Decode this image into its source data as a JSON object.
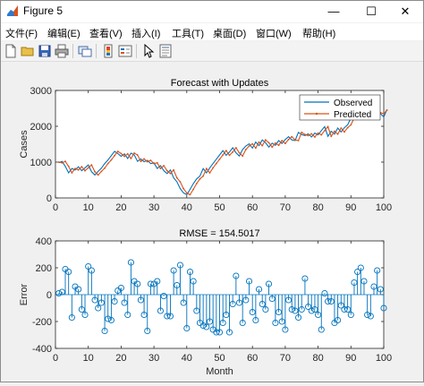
{
  "window": {
    "title": "Figure 5",
    "controls": {
      "minimize": "—",
      "maximize": "☐",
      "close": "✕"
    }
  },
  "menu": [
    {
      "label": "文件(F)"
    },
    {
      "label": "编辑(E)"
    },
    {
      "label": "查看(V)"
    },
    {
      "label": "插入(I)"
    },
    {
      "label": "工具(T)"
    },
    {
      "label": "桌面(D)"
    },
    {
      "label": "窗口(W)"
    },
    {
      "label": "帮助(H)"
    }
  ],
  "toolbar_icons": [
    "new-file-icon",
    "open-folder-icon",
    "save-icon",
    "print-icon",
    "link-plot-icon",
    "insert-colorbar-icon",
    "insert-legend-icon",
    "edit-plot-icon",
    "property-inspector-icon"
  ],
  "chart_data": [
    {
      "type": "line",
      "title": "Forecast with Updates",
      "xlabel": "",
      "ylabel": "Cases",
      "xlim": [
        0,
        100
      ],
      "ylim": [
        0,
        3000
      ],
      "xticks": [
        "0",
        "10",
        "20",
        "30",
        "40",
        "50",
        "60",
        "70",
        "80",
        "90",
        "100"
      ],
      "yticks": [
        "0",
        "1000",
        "2000",
        "3000"
      ],
      "legend": {
        "position": "top-right"
      },
      "series": [
        {
          "name": "Observed",
          "color": "#0072bd",
          "values": [
            980,
            1020,
            880,
            700,
            820,
            780,
            870,
            760,
            840,
            920,
            730,
            640,
            740,
            830,
            960,
            1060,
            1180,
            1300,
            1240,
            1160,
            1230,
            1100,
            1250,
            1200,
            1020,
            1090,
            1010,
            1050,
            960,
            980,
            820,
            900,
            760,
            680,
            780,
            560,
            450,
            260,
            140,
            90,
            240,
            400,
            530,
            610,
            820,
            700,
            840,
            960,
            1080,
            1200,
            1320,
            1190,
            1280,
            1400,
            1260,
            1170,
            1350,
            1450,
            1510,
            1390,
            1560,
            1460,
            1620,
            1540,
            1420,
            1530,
            1470,
            1600,
            1520,
            1630,
            1710,
            1620,
            1600,
            1830,
            1770,
            1740,
            1790,
            1700,
            1810,
            1760,
            1880,
            1990,
            1720,
            1860,
            1780,
            1950,
            1840,
            1960,
            2040,
            2230,
            2390,
            2400,
            2470,
            2300,
            2430,
            2390,
            2420,
            2380,
            2350,
            2260,
            2470
          ]
        },
        {
          "name": "Predicted",
          "color": "#d95319",
          "values": [
            1000,
            980,
            1020,
            880,
            700,
            820,
            780,
            870,
            760,
            840,
            920,
            730,
            640,
            740,
            830,
            960,
            1060,
            1180,
            1300,
            1240,
            1160,
            1230,
            1100,
            1250,
            1200,
            1020,
            1090,
            1010,
            1050,
            960,
            980,
            820,
            900,
            760,
            680,
            780,
            560,
            450,
            260,
            140,
            90,
            240,
            400,
            530,
            610,
            820,
            700,
            840,
            960,
            1080,
            1200,
            1320,
            1190,
            1280,
            1400,
            1260,
            1170,
            1350,
            1450,
            1510,
            1390,
            1560,
            1460,
            1620,
            1540,
            1420,
            1530,
            1470,
            1600,
            1520,
            1630,
            1710,
            1620,
            1600,
            1830,
            1770,
            1740,
            1790,
            1700,
            1810,
            1760,
            1880,
            1990,
            1720,
            1860,
            1780,
            1950,
            1840,
            1960,
            2040,
            2230,
            2390,
            2400,
            2470,
            2300,
            2430,
            2390,
            2420,
            2380,
            2350,
            2450
          ]
        }
      ]
    },
    {
      "type": "stem",
      "title": "RMSE = 154.5017",
      "xlabel": "Month",
      "ylabel": "Error",
      "xlim": [
        0,
        100
      ],
      "ylim": [
        -400,
        400
      ],
      "xticks": [
        "0",
        "10",
        "20",
        "30",
        "40",
        "50",
        "60",
        "70",
        "80",
        "90",
        "100"
      ],
      "yticks": [
        "-400",
        "-200",
        "0",
        "200",
        "400"
      ],
      "series": [
        {
          "color": "#0072bd",
          "x": [
            1,
            2,
            3,
            4,
            5,
            6,
            7,
            8,
            9,
            10,
            11,
            12,
            13,
            14,
            15,
            16,
            17,
            18,
            19,
            20,
            21,
            22,
            23,
            24,
            25,
            26,
            27,
            28,
            29,
            30,
            31,
            32,
            33,
            34,
            35,
            36,
            37,
            38,
            39,
            40,
            41,
            42,
            43,
            44,
            45,
            46,
            47,
            48,
            49,
            50,
            51,
            52,
            53,
            54,
            55,
            56,
            57,
            58,
            59,
            60,
            61,
            62,
            63,
            64,
            65,
            66,
            67,
            68,
            69,
            70,
            71,
            72,
            73,
            74,
            75,
            76,
            77,
            78,
            79,
            80,
            81,
            82,
            83,
            84,
            85,
            86,
            87,
            88,
            89,
            90,
            91,
            92,
            93,
            94,
            95,
            96,
            97,
            98,
            99,
            100
          ],
          "values": [
            10,
            20,
            190,
            170,
            -170,
            60,
            40,
            -110,
            -150,
            210,
            180,
            -40,
            -100,
            -60,
            -270,
            -180,
            -190,
            -50,
            30,
            50,
            -60,
            -150,
            240,
            100,
            80,
            -40,
            -150,
            -270,
            80,
            80,
            100,
            -120,
            -10,
            -160,
            -160,
            180,
            70,
            220,
            -60,
            -250,
            170,
            100,
            -120,
            -210,
            -230,
            -240,
            -200,
            -260,
            -280,
            -280,
            -210,
            -150,
            -280,
            -70,
            140,
            -60,
            -210,
            -40,
            100,
            -130,
            -190,
            40,
            -70,
            -110,
            80,
            -30,
            -210,
            -130,
            -200,
            -260,
            -40,
            -110,
            -120,
            -170,
            -110,
            120,
            -90,
            -120,
            -110,
            -150,
            -260,
            10,
            -50,
            -50,
            -210,
            -190,
            -80,
            -110,
            -110,
            -150,
            90,
            170,
            200,
            100,
            -150,
            -160,
            60,
            180,
            40,
            -100
          ]
        }
      ]
    }
  ]
}
